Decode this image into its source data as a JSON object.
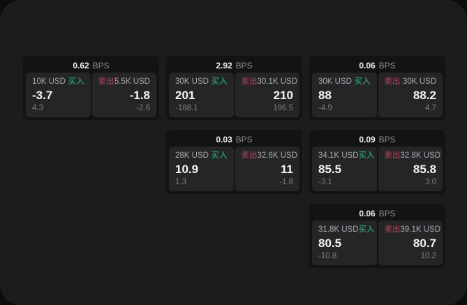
{
  "colors": {
    "buy_accent": "#2ebd85",
    "sell_accent": "#c0495f",
    "window_bg": "#1c1c1d",
    "card_bg": "#131314",
    "panel_bg": "#252528"
  },
  "labels": {
    "bps_unit": "BPS",
    "buy": "买入",
    "sell": "卖出"
  },
  "cards": [
    {
      "bps": "0.62",
      "buy": {
        "amount": "10K USD",
        "value": "-3.7",
        "delta": "4.3"
      },
      "sell": {
        "amount": "5.5K USD",
        "value": "-1.8",
        "delta": "-2.6"
      }
    },
    {
      "bps": "2.92",
      "buy": {
        "amount": "30K USD",
        "value": "201",
        "delta": "-188.1"
      },
      "sell": {
        "amount": "30.1K USD",
        "value": "210",
        "delta": "196.5"
      }
    },
    {
      "bps": "0.06",
      "buy": {
        "amount": "30K USD",
        "value": "88",
        "delta": "-4.9"
      },
      "sell": {
        "amount": "30K USD",
        "value": "88.2",
        "delta": "4.7"
      }
    },
    {
      "bps": "0.03",
      "buy": {
        "amount": "28K USD",
        "value": "10.9",
        "delta": "1.3"
      },
      "sell": {
        "amount": "32.6K USD",
        "value": "11",
        "delta": "-1.8"
      }
    },
    {
      "bps": "0.09",
      "buy": {
        "amount": "34.1K USD",
        "value": "85.5",
        "delta": "-3.1"
      },
      "sell": {
        "amount": "32.8K USD",
        "value": "85.8",
        "delta": "3.0"
      }
    },
    {
      "bps": "0.06",
      "buy": {
        "amount": "31.8K USD",
        "value": "80.5",
        "delta": "-10.8"
      },
      "sell": {
        "amount": "39.1K USD",
        "value": "80.7",
        "delta": "10.2"
      }
    }
  ]
}
